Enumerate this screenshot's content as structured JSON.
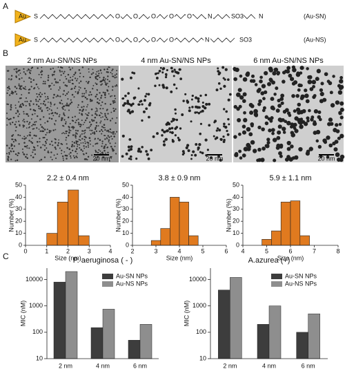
{
  "panel_labels": [
    "A",
    "B",
    "C"
  ],
  "structures": [
    {
      "au": "Au",
      "atoms": [
        "S",
        "O",
        "O",
        "O",
        "O",
        "O",
        "N",
        "SO3",
        "N"
      ],
      "label": "(Au-SN)"
    },
    {
      "au": "Au",
      "atoms": [
        "S",
        "O",
        "O",
        "O",
        "O",
        "N",
        "SO3"
      ],
      "label": "(Au-NS)"
    }
  ],
  "tem": [
    {
      "label": "2 nm Au-SN/NS NPs",
      "scale": "20 nm"
    },
    {
      "label": "4 nm Au-SN/NS NPs",
      "scale": "20 nm"
    },
    {
      "label": "6 nm Au-SN/NS NPs",
      "scale": "20 nm"
    }
  ],
  "chart_data": [
    {
      "type": "histogram",
      "title": "2.2 ± 0.4 nm",
      "x_label": "Size (nm)",
      "y_label": "Number (%)",
      "color": "#e07a1f",
      "bins": [
        1.0,
        1.5,
        2.0,
        2.5,
        3.0
      ],
      "counts": [
        10,
        36,
        46,
        8
      ],
      "xlim": [
        0,
        4
      ],
      "xticks": [
        0,
        1,
        2,
        3,
        4
      ],
      "ylim": [
        0,
        50
      ],
      "yticks": [
        0,
        10,
        20,
        30,
        40,
        50
      ]
    },
    {
      "type": "histogram",
      "title": "3.8 ± 0.9 nm",
      "x_label": "Size (nm)",
      "y_label": "Number (%)",
      "color": "#e07a1f",
      "bins": [
        2.8,
        3.2,
        3.6,
        4.0,
        4.4,
        4.8
      ],
      "counts": [
        4,
        14,
        40,
        36,
        8
      ],
      "xlim": [
        2,
        6
      ],
      "xticks": [
        2,
        3,
        4,
        5,
        6
      ],
      "ylim": [
        0,
        50
      ],
      "yticks": [
        0,
        10,
        20,
        30,
        40,
        50
      ]
    },
    {
      "type": "histogram",
      "title": "5.9 ± 1.1 nm",
      "x_label": "Size (nm)",
      "y_label": "Number (%)",
      "color": "#e07a1f",
      "bins": [
        4.8,
        5.2,
        5.6,
        6.0,
        6.4,
        6.8
      ],
      "counts": [
        5,
        12,
        36,
        37,
        8
      ],
      "xlim": [
        4,
        8
      ],
      "xticks": [
        4,
        5,
        6,
        7,
        8
      ],
      "ylim": [
        0,
        50
      ],
      "yticks": [
        0,
        10,
        20,
        30,
        40,
        50
      ]
    },
    {
      "type": "bar",
      "title": "P. aeruginosa ( - )",
      "y_label": "MIC (nM)",
      "log_scale": true,
      "categories": [
        "2 nm",
        "4 nm",
        "6 nm"
      ],
      "series": [
        {
          "name": "Au-SN NPs",
          "color": "#3d3d3d",
          "values": [
            8000,
            150,
            50
          ]
        },
        {
          "name": "Au-NS NPs",
          "color": "#8e8e8e",
          "values": [
            20000,
            750,
            200
          ]
        }
      ],
      "ylim": [
        10,
        27000
      ],
      "yticks": [
        10,
        100,
        1000,
        10000
      ],
      "legend": "upper right"
    },
    {
      "type": "bar",
      "title": "A.azurea (+)",
      "y_label": "MIC (nM)",
      "log_scale": true,
      "categories": [
        "2 nm",
        "4 nm",
        "6 nm"
      ],
      "series": [
        {
          "name": "Au-SN NPs",
          "color": "#3d3d3d",
          "values": [
            4000,
            200,
            100
          ]
        },
        {
          "name": "Au-NS NPs",
          "color": "#8e8e8e",
          "values": [
            12000,
            1000,
            500
          ]
        }
      ],
      "ylim": [
        10,
        27000
      ],
      "yticks": [
        10,
        100,
        1000,
        10000
      ],
      "legend": "upper right"
    }
  ]
}
